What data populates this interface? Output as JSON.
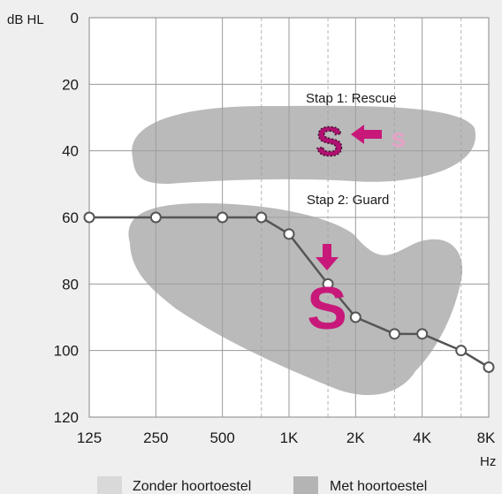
{
  "chart_data": {
    "type": "line",
    "y_unit": "dB HL",
    "x_unit": "Hz",
    "x_categories": [
      "125",
      "250",
      "500",
      "1K",
      "2K",
      "4K",
      "8K"
    ],
    "y_ticks": [
      0,
      20,
      40,
      60,
      80,
      100,
      120
    ],
    "ylim": [
      0,
      120
    ],
    "y_inverted": true,
    "x_scale": "log2 (octaves)",
    "grid": true,
    "series": [
      {
        "x_hz": [
          125,
          250,
          500,
          750,
          1000,
          1500,
          2000,
          3000,
          4000,
          6000,
          8000
        ],
        "y_db": [
          60,
          60,
          60,
          60,
          65,
          80,
          90,
          95,
          95,
          100,
          105
        ]
      }
    ],
    "annotations": {
      "step1": "Stap 1: Rescue",
      "step2": "Stap 2: Guard",
      "letter_large": "S",
      "letter_small": "s"
    },
    "legend": {
      "placement": "bottom",
      "items": [
        "Zonder hoortoestel",
        "Met hoortoestel"
      ]
    },
    "colors": {
      "line": "#555555",
      "accent": "#c8187a",
      "accent_light": "#e6a0c6",
      "region": "#a0a0a0",
      "legend_unaided": "#d9d9d9",
      "legend_aided": "#b4b4b4"
    }
  }
}
